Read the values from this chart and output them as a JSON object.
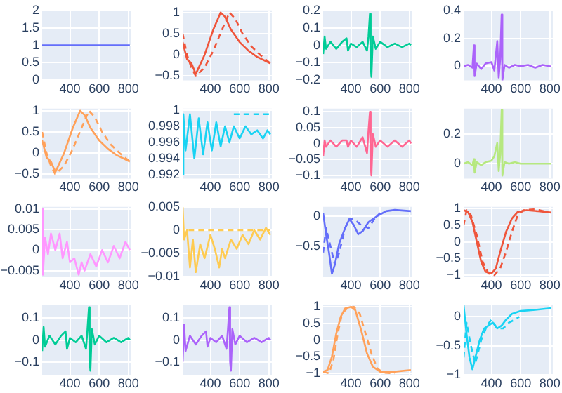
{
  "chart_data": [
    {
      "type": "line",
      "xlim": [
        210,
        820
      ],
      "xticks": [
        400,
        600,
        800
      ],
      "ylim": [
        0,
        2
      ],
      "yticks": [
        0,
        0.5,
        1,
        1.5,
        2
      ],
      "grid": true,
      "series": [
        {
          "color": "#636efa",
          "x": [
            210,
            810
          ],
          "values": [
            1,
            1
          ]
        }
      ]
    },
    {
      "type": "line",
      "xlim": [
        210,
        820
      ],
      "xticks": [
        400,
        600,
        800
      ],
      "ylim": [
        -0.6,
        1.05
      ],
      "yticks": [
        -0.5,
        0,
        0.5,
        1
      ],
      "grid": true,
      "series": [
        {
          "color": "#ef553b",
          "x": [
            210,
            240,
            270,
            300,
            360,
            420,
            470,
            500,
            540,
            600,
            660,
            720,
            810
          ],
          "values": [
            0.3,
            -0.1,
            -0.2,
            -0.45,
            0,
            0.6,
            1,
            0.9,
            0.6,
            0.3,
            0.1,
            -0.05,
            -0.2
          ]
        },
        {
          "color": "#ef553b",
          "line_style": "dashed",
          "x": [
            210,
            240,
            270,
            300,
            360,
            420,
            480,
            530,
            570,
            620,
            680,
            740,
            810
          ],
          "values": [
            0.5,
            0,
            -0.3,
            -0.5,
            -0.3,
            0.1,
            0.6,
            1,
            0.85,
            0.5,
            0.2,
            0,
            -0.2
          ]
        }
      ]
    },
    {
      "type": "line",
      "xlim": [
        210,
        820
      ],
      "xticks": [
        400,
        600,
        800
      ],
      "ylim": [
        -0.2,
        0.2
      ],
      "yticks": [
        -0.2,
        -0.1,
        0,
        0.1,
        0.2
      ],
      "grid": true,
      "series": [
        {
          "color": "#00cc96",
          "x": [
            210,
            220,
            230,
            260,
            300,
            340,
            370,
            380,
            400,
            440,
            480,
            510,
            520,
            530,
            535,
            540,
            550,
            570,
            600,
            650,
            700,
            750,
            800,
            810
          ],
          "values": [
            -0.05,
            0.05,
            -0.02,
            0.02,
            -0.02,
            0.02,
            0.04,
            -0.03,
            0.01,
            -0.01,
            0.02,
            -0.03,
            0.05,
            0.18,
            -0.1,
            -0.18,
            0.05,
            -0.02,
            0.02,
            -0.01,
            0.01,
            -0.01,
            0.01,
            0
          ]
        }
      ]
    },
    {
      "type": "line",
      "xlim": [
        210,
        820
      ],
      "xticks": [
        400,
        600,
        800
      ],
      "ylim": [
        -0.1,
        0.4
      ],
      "yticks": [
        0,
        0.2,
        0.4
      ],
      "grid": true,
      "series": [
        {
          "color": "#ab63fa",
          "x": [
            210,
            240,
            270,
            280,
            285,
            300,
            330,
            360,
            400,
            420,
            440,
            450,
            460,
            470,
            475,
            490,
            520,
            560,
            600,
            650,
            700,
            750,
            800,
            810
          ],
          "values": [
            0,
            0.01,
            -0.01,
            0.15,
            -0.07,
            0.02,
            -0.02,
            0.02,
            0.03,
            -0.03,
            0.18,
            -0.08,
            0.05,
            0.37,
            -0.1,
            0.01,
            -0.01,
            0.01,
            0,
            0.01,
            -0.01,
            0.01,
            0,
            0
          ]
        }
      ]
    },
    {
      "type": "line",
      "xlim": [
        210,
        820
      ],
      "xticks": [
        400,
        600,
        800
      ],
      "ylim": [
        -0.6,
        1.05
      ],
      "yticks": [
        -0.5,
        0,
        0.5,
        1
      ],
      "grid": true,
      "series": [
        {
          "color": "#ffa15a",
          "x": [
            210,
            240,
            270,
            300,
            360,
            420,
            470,
            500,
            540,
            600,
            660,
            720,
            810
          ],
          "values": [
            0.3,
            -0.1,
            -0.2,
            -0.45,
            0,
            0.6,
            1,
            0.9,
            0.6,
            0.3,
            0.1,
            -0.05,
            -0.2
          ]
        },
        {
          "color": "#ffa15a",
          "line_style": "dashed",
          "x": [
            210,
            240,
            270,
            300,
            360,
            420,
            480,
            530,
            570,
            620,
            680,
            740,
            810
          ],
          "values": [
            0.5,
            0,
            -0.3,
            -0.5,
            -0.3,
            0.1,
            0.6,
            1,
            0.85,
            0.5,
            0.2,
            0,
            -0.2
          ]
        }
      ]
    },
    {
      "type": "line",
      "xlim": [
        210,
        820
      ],
      "xticks": [
        400,
        600,
        800
      ],
      "ylim": [
        0.9915,
        1.0002
      ],
      "yticks": [
        0.992,
        0.994,
        0.996,
        0.998,
        1
      ],
      "grid": true,
      "series": [
        {
          "color": "#19d3f3",
          "x": [
            210,
            215,
            230,
            260,
            290,
            320,
            350,
            380,
            410,
            440,
            470,
            500,
            530,
            560,
            600,
            640,
            680,
            720,
            760,
            790,
            810
          ],
          "values": [
            0.992,
            0.9995,
            0.995,
            0.9995,
            0.994,
            0.999,
            0.9945,
            0.9985,
            0.995,
            0.9985,
            0.9955,
            0.998,
            0.996,
            0.998,
            0.9965,
            0.998,
            0.997,
            0.9975,
            0.9965,
            0.9975,
            0.997
          ]
        },
        {
          "color": "#19d3f3",
          "line_style": "dashed",
          "x": [
            560,
            810
          ],
          "values": [
            0.9995,
            0.9995
          ]
        }
      ]
    },
    {
      "type": "line",
      "xlim": [
        210,
        820
      ],
      "xticks": [
        400,
        600,
        800
      ],
      "ylim": [
        -0.11,
        0.11
      ],
      "yticks": [
        -0.1,
        -0.05,
        0,
        0.05,
        0.1
      ],
      "grid": true,
      "series": [
        {
          "color": "#ff6692",
          "x": [
            210,
            220,
            230,
            260,
            300,
            340,
            370,
            380,
            400,
            440,
            480,
            510,
            520,
            530,
            535,
            540,
            550,
            570,
            600,
            650,
            700,
            750,
            800,
            810
          ],
          "values": [
            -0.04,
            0.01,
            -0.01,
            0.01,
            -0.01,
            0.01,
            0.01,
            -0.01,
            0.01,
            -0.01,
            0.02,
            -0.03,
            0.04,
            0.1,
            -0.06,
            -0.1,
            0.03,
            -0.01,
            0.01,
            -0.01,
            0.01,
            -0.01,
            0.01,
            0
          ]
        }
      ]
    },
    {
      "type": "line",
      "xlim": [
        210,
        820
      ],
      "xticks": [
        400,
        600,
        800
      ],
      "ylim": [
        -0.1,
        0.37
      ],
      "yticks": [
        0,
        0.2
      ],
      "grid": true,
      "series": [
        {
          "color": "#b6e880",
          "x": [
            210,
            240,
            270,
            280,
            285,
            300,
            330,
            360,
            400,
            420,
            440,
            450,
            460,
            470,
            475,
            490,
            520,
            560,
            600,
            650,
            700,
            750,
            800,
            810
          ],
          "values": [
            0,
            0.01,
            -0.01,
            0.03,
            -0.06,
            0.01,
            -0.01,
            0.01,
            0.02,
            0.05,
            0.14,
            -0.05,
            0.06,
            0.36,
            -0.08,
            0.01,
            0,
            0.01,
            0,
            0,
            0,
            0,
            0,
            0
          ]
        }
      ]
    },
    {
      "type": "line",
      "xlim": [
        210,
        820
      ],
      "xticks": [
        400,
        600,
        800
      ],
      "ylim": [
        -0.0065,
        0.0105
      ],
      "yticks": [
        -0.005,
        0,
        0.005,
        0.01
      ],
      "grid": true,
      "series": [
        {
          "color": "#ff97ff",
          "x": [
            210,
            215,
            230,
            250,
            270,
            300,
            330,
            350,
            380,
            400,
            430,
            460,
            480,
            500,
            540,
            580,
            620,
            660,
            700,
            740,
            780,
            810
          ],
          "values": [
            0.01,
            -0.006,
            0.003,
            -0.001,
            0.004,
            0,
            0.004,
            -0.002,
            0.002,
            -0.003,
            -0.002,
            -0.006,
            -0.003,
            -0.005,
            -0.001,
            -0.004,
            0,
            -0.003,
            0.001,
            -0.002,
            0.002,
            0
          ]
        }
      ]
    },
    {
      "type": "line",
      "xlim": [
        210,
        820
      ],
      "xticks": [
        400,
        600,
        800
      ],
      "ylim": [
        -0.01,
        0.005
      ],
      "yticks": [
        -0.01,
        -0.005,
        0,
        0.005
      ],
      "grid": true,
      "series": [
        {
          "color": "#fecb52",
          "x": [
            210,
            220,
            240,
            260,
            280,
            300,
            330,
            360,
            400,
            430,
            460,
            480,
            500,
            540,
            580,
            620,
            660,
            700,
            740,
            780,
            810
          ],
          "values": [
            0.005,
            -0.002,
            0,
            -0.008,
            -0.002,
            -0.009,
            -0.003,
            -0.006,
            -0.001,
            -0.004,
            -0.008,
            -0.004,
            -0.006,
            -0.002,
            -0.004,
            -0.001,
            -0.003,
            0,
            -0.002,
            0.0005,
            -0.001
          ]
        },
        {
          "color": "#fecb52",
          "line_style": "dashed",
          "x": [
            250,
            810
          ],
          "values": [
            0,
            0
          ]
        }
      ]
    },
    {
      "type": "line",
      "xlim": [
        210,
        820
      ],
      "xticks": [
        400,
        600,
        800
      ],
      "ylim": [
        -1,
        0.15
      ],
      "yticks": [
        -0.5,
        0
      ],
      "grid": true,
      "series": [
        {
          "color": "#636efa",
          "x": [
            210,
            230,
            250,
            270,
            290,
            320,
            360,
            390,
            420,
            450,
            480,
            520,
            580,
            640,
            700,
            810
          ],
          "values": [
            0.05,
            -0.3,
            -0.6,
            -0.95,
            -0.8,
            -0.45,
            -0.2,
            -0.05,
            -0.15,
            -0.3,
            -0.25,
            -0.1,
            0,
            0.08,
            0.1,
            0.08
          ]
        },
        {
          "color": "#636efa",
          "line_style": "dashed",
          "x": [
            210,
            230,
            260,
            290,
            320,
            360,
            390,
            420,
            470,
            520,
            560,
            600
          ],
          "values": [
            -0.6,
            -0.2,
            -0.5,
            -0.8,
            -0.6,
            -0.2,
            -0.05,
            -0.05,
            -0.15,
            -0.2,
            -0.05,
            0.05
          ]
        }
      ]
    },
    {
      "type": "line",
      "xlim": [
        210,
        820
      ],
      "xticks": [
        400,
        600,
        800
      ],
      "ylim": [
        -1.05,
        1.05
      ],
      "yticks": [
        -1,
        -0.5,
        0,
        0.5,
        1
      ],
      "grid": true,
      "series": [
        {
          "color": "#ef553b",
          "x": [
            210,
            240,
            270,
            300,
            330,
            360,
            400,
            430,
            460,
            500,
            540,
            580,
            640,
            720,
            810
          ],
          "values": [
            0.95,
            0.9,
            0.6,
            0,
            -0.6,
            -0.9,
            -0.95,
            -0.8,
            -0.3,
            0.3,
            0.7,
            0.9,
            0.95,
            0.92,
            0.88
          ]
        },
        {
          "color": "#ef553b",
          "line_style": "dashed",
          "x": [
            210,
            230,
            260,
            300,
            340,
            380,
            420,
            460,
            500,
            540,
            580,
            620,
            700,
            760
          ],
          "values": [
            0.5,
            0.95,
            0.8,
            0.2,
            -0.6,
            -0.95,
            -1,
            -0.8,
            -0.3,
            0.3,
            0.8,
            0.95,
            0.98,
            0.92
          ]
        }
      ]
    },
    {
      "type": "line",
      "xlim": [
        210,
        820
      ],
      "xticks": [
        400,
        600,
        800
      ],
      "ylim": [
        -0.16,
        0.16
      ],
      "yticks": [
        -0.1,
        0,
        0.1
      ],
      "grid": true,
      "series": [
        {
          "color": "#00cc96",
          "x": [
            210,
            220,
            230,
            260,
            300,
            340,
            370,
            380,
            400,
            440,
            480,
            510,
            520,
            530,
            535,
            540,
            550,
            570,
            600,
            650,
            700,
            750,
            800,
            810
          ],
          "values": [
            -0.05,
            0.06,
            -0.03,
            0.02,
            -0.02,
            0.02,
            0.04,
            -0.04,
            0.01,
            -0.01,
            0.02,
            -0.04,
            0.05,
            0.15,
            -0.1,
            -0.14,
            0.05,
            -0.02,
            0.02,
            -0.01,
            0.01,
            -0.01,
            0.01,
            0
          ]
        }
      ]
    },
    {
      "type": "line",
      "xlim": [
        210,
        820
      ],
      "xticks": [
        400,
        600,
        800
      ],
      "ylim": [
        -0.16,
        0.16
      ],
      "yticks": [
        -0.1,
        0,
        0.1
      ],
      "grid": true,
      "series": [
        {
          "color": "#ab63fa",
          "x": [
            210,
            220,
            230,
            260,
            300,
            340,
            370,
            380,
            400,
            440,
            480,
            510,
            520,
            530,
            535,
            540,
            550,
            570,
            600,
            650,
            700,
            750,
            800,
            810
          ],
          "values": [
            -0.1,
            0.07,
            -0.05,
            0.02,
            -0.02,
            0.02,
            0.04,
            -0.03,
            0.01,
            -0.01,
            0.02,
            -0.04,
            0.05,
            0.15,
            -0.1,
            -0.14,
            0.05,
            -0.02,
            0.02,
            -0.01,
            0.01,
            -0.01,
            0.01,
            0
          ]
        }
      ]
    },
    {
      "type": "line",
      "xlim": [
        210,
        820
      ],
      "xticks": [
        400,
        600,
        800
      ],
      "ylim": [
        -1.05,
        1.05
      ],
      "yticks": [
        -1,
        -0.5,
        0,
        0.5,
        1
      ],
      "grid": true,
      "series": [
        {
          "color": "#ffa15a",
          "x": [
            210,
            240,
            270,
            300,
            330,
            360,
            400,
            430,
            470,
            510,
            550,
            600,
            700,
            810
          ],
          "values": [
            -0.95,
            -0.9,
            -0.5,
            0.2,
            0.7,
            0.95,
            1,
            0.9,
            0.3,
            -0.4,
            -0.8,
            -0.95,
            -0.95,
            -0.9
          ]
        },
        {
          "color": "#ffa15a",
          "line_style": "dashed",
          "x": [
            210,
            250,
            280,
            310,
            340,
            380,
            420,
            460,
            500,
            540,
            580,
            620,
            700
          ],
          "values": [
            -0.95,
            -1,
            -0.6,
            0.2,
            0.8,
            0.98,
            1,
            0.8,
            0.2,
            -0.4,
            -0.85,
            -0.98,
            -1
          ]
        }
      ]
    },
    {
      "type": "line",
      "xlim": [
        210,
        820
      ],
      "xticks": [
        400,
        600,
        800
      ],
      "ylim": [
        -1,
        0.2
      ],
      "yticks": [
        -1,
        -0.5,
        0
      ],
      "grid": true,
      "series": [
        {
          "color": "#19d3f3",
          "x": [
            210,
            230,
            250,
            270,
            290,
            320,
            350,
            380,
            410,
            440,
            470,
            500,
            540,
            600,
            700,
            810
          ],
          "values": [
            0.2,
            -0.3,
            -0.7,
            -0.9,
            -0.7,
            -0.4,
            -0.2,
            -0.15,
            -0.1,
            -0.2,
            -0.15,
            -0.05,
            0.05,
            0.1,
            0.12,
            0.15
          ]
        },
        {
          "color": "#19d3f3",
          "line_style": "dashed",
          "x": [
            210,
            230,
            260,
            290,
            330,
            370,
            400,
            440,
            480,
            520,
            560,
            590
          ],
          "values": [
            -0.7,
            -0.1,
            -0.5,
            -0.8,
            -0.4,
            -0.15,
            -0.05,
            -0.2,
            -0.2,
            -0.1,
            -0.05,
            0
          ]
        }
      ]
    }
  ]
}
